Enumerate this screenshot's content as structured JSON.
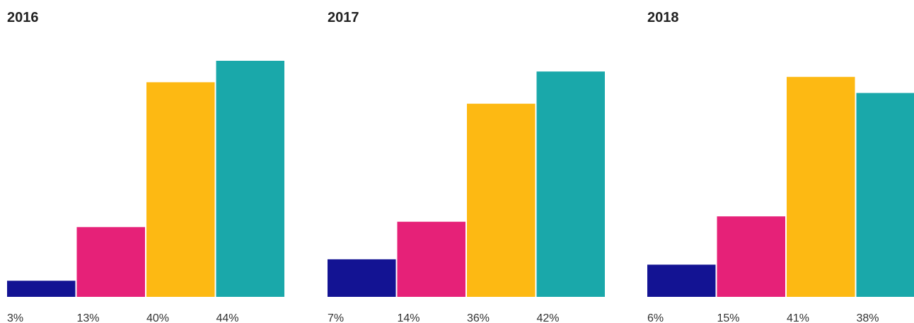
{
  "chart_data": [
    {
      "type": "bar",
      "title": "2016",
      "values": [
        3,
        13,
        40,
        44
      ],
      "labels": [
        "3%",
        "13%",
        "40%",
        "44%"
      ],
      "colors": [
        "#131393",
        "#e62178",
        "#fdb913",
        "#1aa8aa"
      ],
      "ylim": [
        0,
        44
      ],
      "grid": false
    },
    {
      "type": "bar",
      "title": "2017",
      "values": [
        7,
        14,
        36,
        42
      ],
      "labels": [
        "7%",
        "14%",
        "36%",
        "42%"
      ],
      "colors": [
        "#131393",
        "#e62178",
        "#fdb913",
        "#1aa8aa"
      ],
      "ylim": [
        0,
        44
      ],
      "grid": false
    },
    {
      "type": "bar",
      "title": "2018",
      "values": [
        6,
        15,
        41,
        38
      ],
      "labels": [
        "6%",
        "15%",
        "41%",
        "38%"
      ],
      "colors": [
        "#131393",
        "#e62178",
        "#fdb913",
        "#1aa8aa"
      ],
      "ylim": [
        0,
        44
      ],
      "grid": false
    }
  ]
}
